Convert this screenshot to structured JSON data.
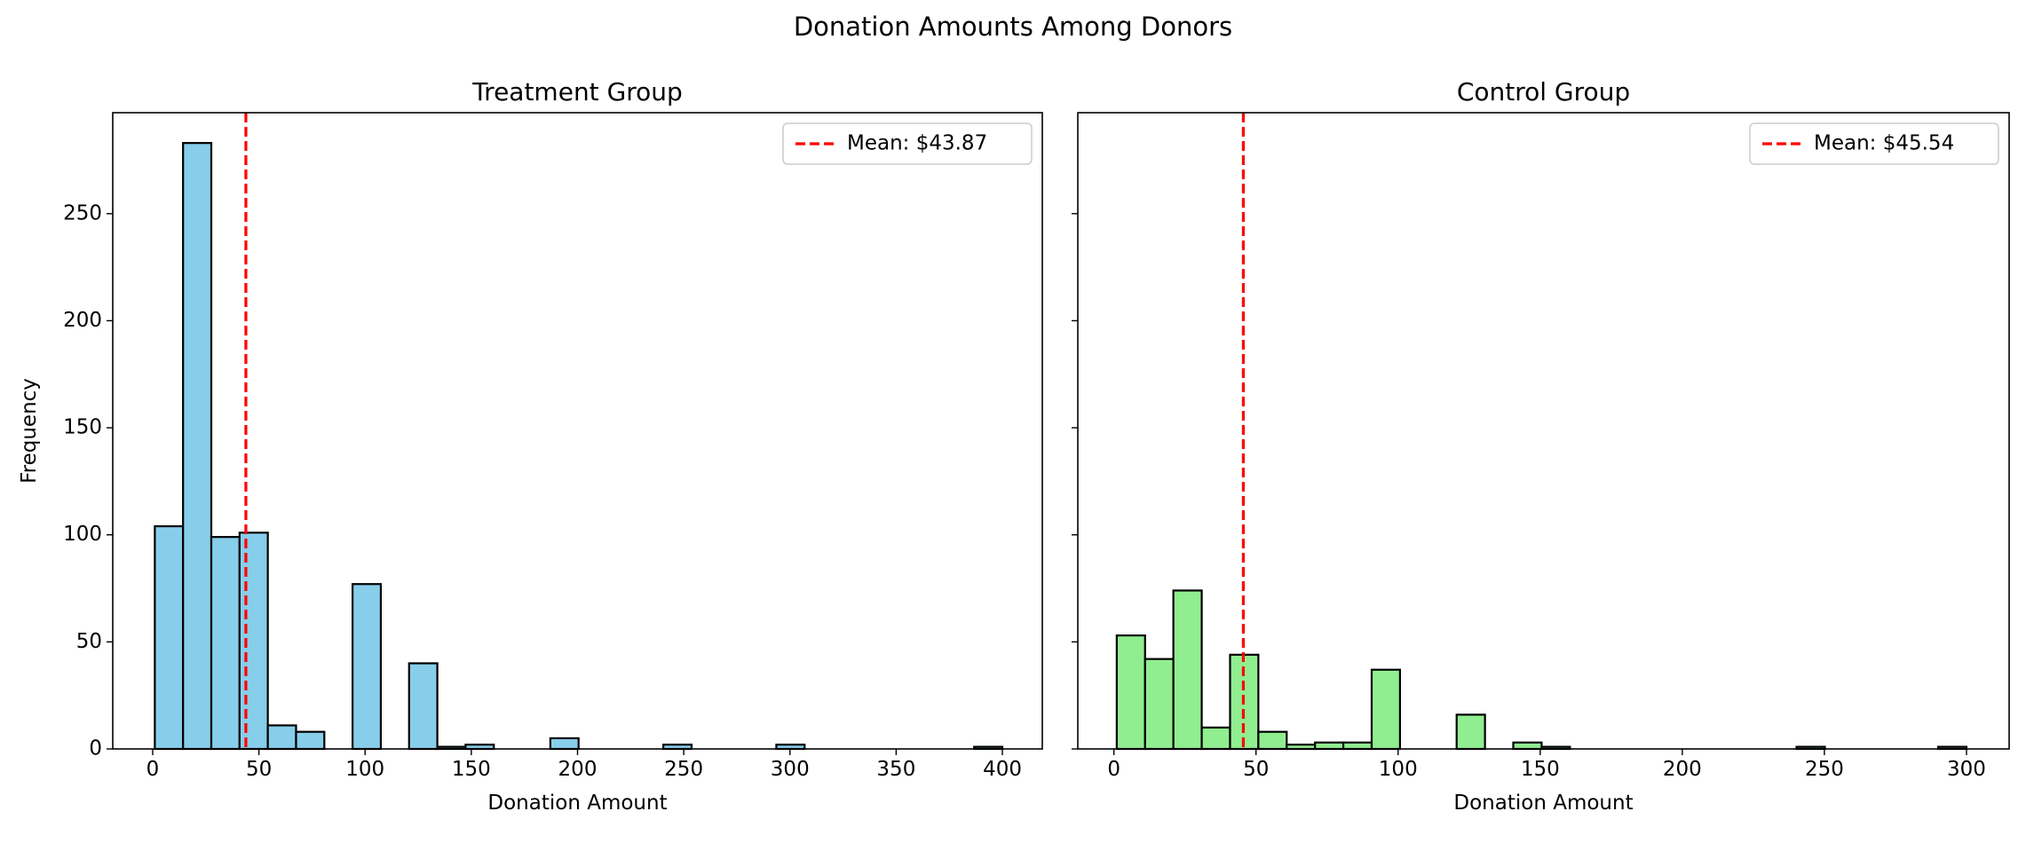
{
  "title": "Donation Amounts Among Donors",
  "chart_data": [
    {
      "type": "histogram",
      "title": "Treatment Group",
      "xlabel": "Donation Amount",
      "ylabel": "Frequency",
      "bins": [
        1,
        14.3,
        27.6,
        40.9,
        54.2,
        67.5,
        80.8,
        94.1,
        107.4,
        120.7,
        134,
        147.3,
        160.6,
        173.9,
        187.2,
        200.5,
        213.8,
        227.1,
        240.4,
        253.7,
        267,
        280.3,
        293.6,
        306.9,
        320.2,
        333.5,
        346.8,
        360.1,
        373.4,
        386.7,
        400
      ],
      "counts": [
        104,
        283,
        99,
        101,
        11,
        8,
        0,
        77,
        0,
        40,
        1,
        2,
        0,
        0,
        5,
        0,
        0,
        0,
        2,
        0,
        0,
        0,
        2,
        0,
        0,
        0,
        0,
        0,
        0,
        1
      ],
      "color": "#87ceeb",
      "edgecolor": "#000000",
      "xlim": [
        -18.8,
        418.8
      ],
      "ylim": [
        0,
        297.15
      ],
      "xticks": [
        0,
        50,
        100,
        150,
        200,
        250,
        300,
        350,
        400
      ],
      "yticks": [
        0,
        50,
        100,
        150,
        200,
        250
      ],
      "mean": 43.87,
      "mean_label": "Mean: $43.87",
      "mean_color": "#ff0000",
      "legend": "upper right",
      "show_ytick_labels": true
    },
    {
      "type": "histogram",
      "title": "Control Group",
      "xlabel": "Donation Amount",
      "bins": [
        1,
        10.97,
        20.93,
        30.9,
        40.87,
        50.83,
        60.8,
        70.77,
        80.73,
        90.7,
        100.67,
        110.63,
        120.6,
        130.57,
        140.53,
        150.5,
        160.47,
        170.43,
        180.4,
        190.37,
        200.33,
        210.3,
        220.27,
        230.23,
        240.2,
        250.17,
        260.13,
        270.1,
        280.07,
        290.03,
        300
      ],
      "counts": [
        53,
        42,
        74,
        10,
        44,
        8,
        2,
        3,
        3,
        37,
        0,
        0,
        16,
        0,
        3,
        1,
        0,
        0,
        0,
        0,
        0,
        0,
        0,
        0,
        1,
        0,
        0,
        0,
        0,
        1
      ],
      "color": "#90ee90",
      "edgecolor": "#000000",
      "xlim": [
        -12.7,
        315
      ],
      "ylim": [
        0,
        297.15
      ],
      "xticks": [
        0,
        50,
        100,
        150,
        200,
        250,
        300
      ],
      "yticks": [
        0,
        50,
        100,
        150,
        200,
        250
      ],
      "mean": 45.54,
      "mean_label": "Mean: $45.54",
      "mean_color": "#ff0000",
      "legend": "upper right",
      "show_ytick_labels": false
    }
  ]
}
